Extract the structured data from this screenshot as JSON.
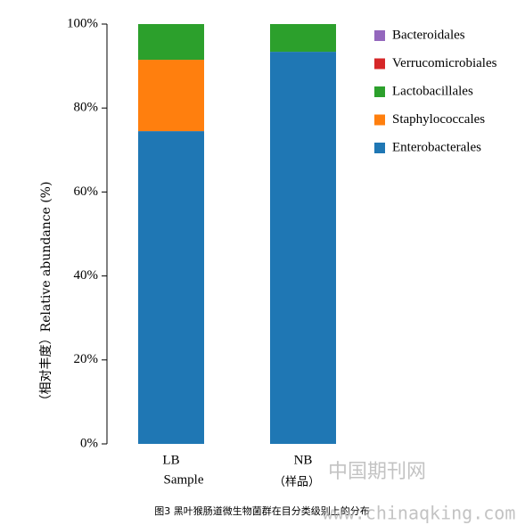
{
  "chart_data": {
    "type": "stacked_bar",
    "caption": "图3 黑叶猴肠道微生物菌群在目分类级别上的分布",
    "xlabel": "Sample",
    "xlabel_cn": "（样品）",
    "ylabel": "（相对丰度）Relative abundance (%)",
    "categories": [
      "LB",
      "NB"
    ],
    "series": [
      {
        "name": "Enterobacterales",
        "color": "#1f77b4",
        "values": [
          74.5,
          93.4
        ]
      },
      {
        "name": "Staphylococcales",
        "color": "#ff7f0e",
        "values": [
          17.0,
          0
        ]
      },
      {
        "name": "Lactobacillales",
        "color": "#2ca02c",
        "values": [
          8.5,
          6.6
        ]
      },
      {
        "name": "Verrucomicrobiales",
        "color": "#d62728",
        "values": [
          0,
          0
        ]
      },
      {
        "name": "Bacteroidales",
        "color": "#9467bd",
        "values": [
          0,
          0
        ]
      }
    ],
    "ylim": [
      0,
      100
    ],
    "yticks": [
      {
        "value": 0,
        "label": "0%"
      },
      {
        "value": 20,
        "label": "20%"
      },
      {
        "value": 40,
        "label": "40%"
      },
      {
        "value": 60,
        "label": "60%"
      },
      {
        "value": 80,
        "label": "80%"
      },
      {
        "value": 100,
        "label": "100%"
      }
    ],
    "legend": "upper-right",
    "watermark": "中国期刊网",
    "watermark_url": "www.chinaqking.com"
  }
}
